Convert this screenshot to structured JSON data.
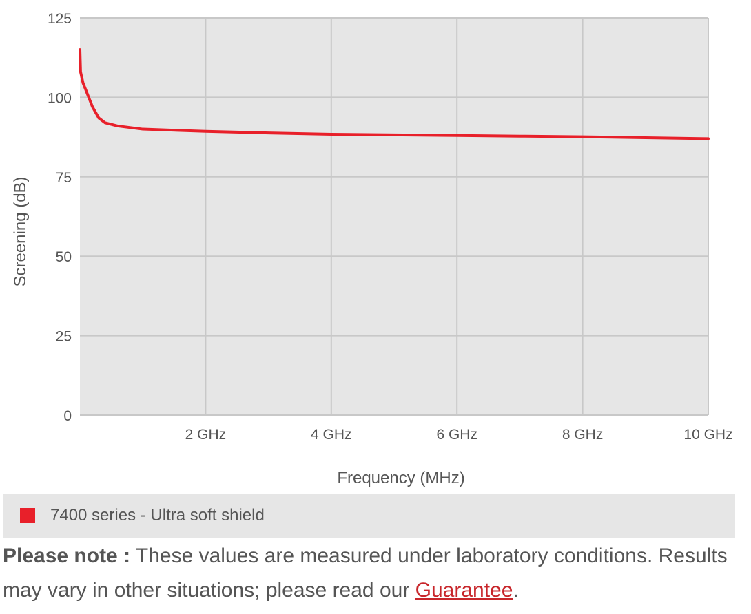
{
  "chart_data": {
    "type": "line",
    "title": "",
    "xlabel": "Frequency (MHz)",
    "ylabel": "Screening (dB)",
    "xlim": [
      0,
      10000
    ],
    "ylim": [
      0,
      125
    ],
    "y_ticks": [
      0,
      25,
      50,
      75,
      100,
      125
    ],
    "y_tick_labels": [
      "0",
      "25",
      "50",
      "75",
      "100",
      "125"
    ],
    "x_ticks": [
      2000,
      4000,
      6000,
      8000,
      10000
    ],
    "x_tick_labels": [
      "2 GHz",
      "4 GHz",
      "6 GHz",
      "8 GHz",
      "10 GHz"
    ],
    "grid": true,
    "legend_placement": "bottom",
    "series": [
      {
        "name": "7400 series - Ultra soft shield",
        "color": "#e8202a",
        "x": [
          0,
          10,
          50,
          100,
          200,
          300,
          400,
          600,
          1000,
          2000,
          3000,
          4000,
          5000,
          6000,
          7000,
          8000,
          9000,
          10000
        ],
        "y": [
          115,
          108,
          104.5,
          102,
          97,
          93.5,
          92,
          91,
          90,
          89.3,
          88.8,
          88.4,
          88.2,
          88,
          87.8,
          87.6,
          87.3,
          87
        ]
      }
    ]
  },
  "colors": {
    "plot_background": "#e6e6e6",
    "grid": "#c8c8c8",
    "axis_text": "#555555",
    "link": "#c8262b"
  },
  "note": {
    "bold": "Please note :",
    "text": " These values are measured under laboratory conditions. Results may vary in other situations; please read our ",
    "link": "Guarantee",
    "end": "."
  }
}
